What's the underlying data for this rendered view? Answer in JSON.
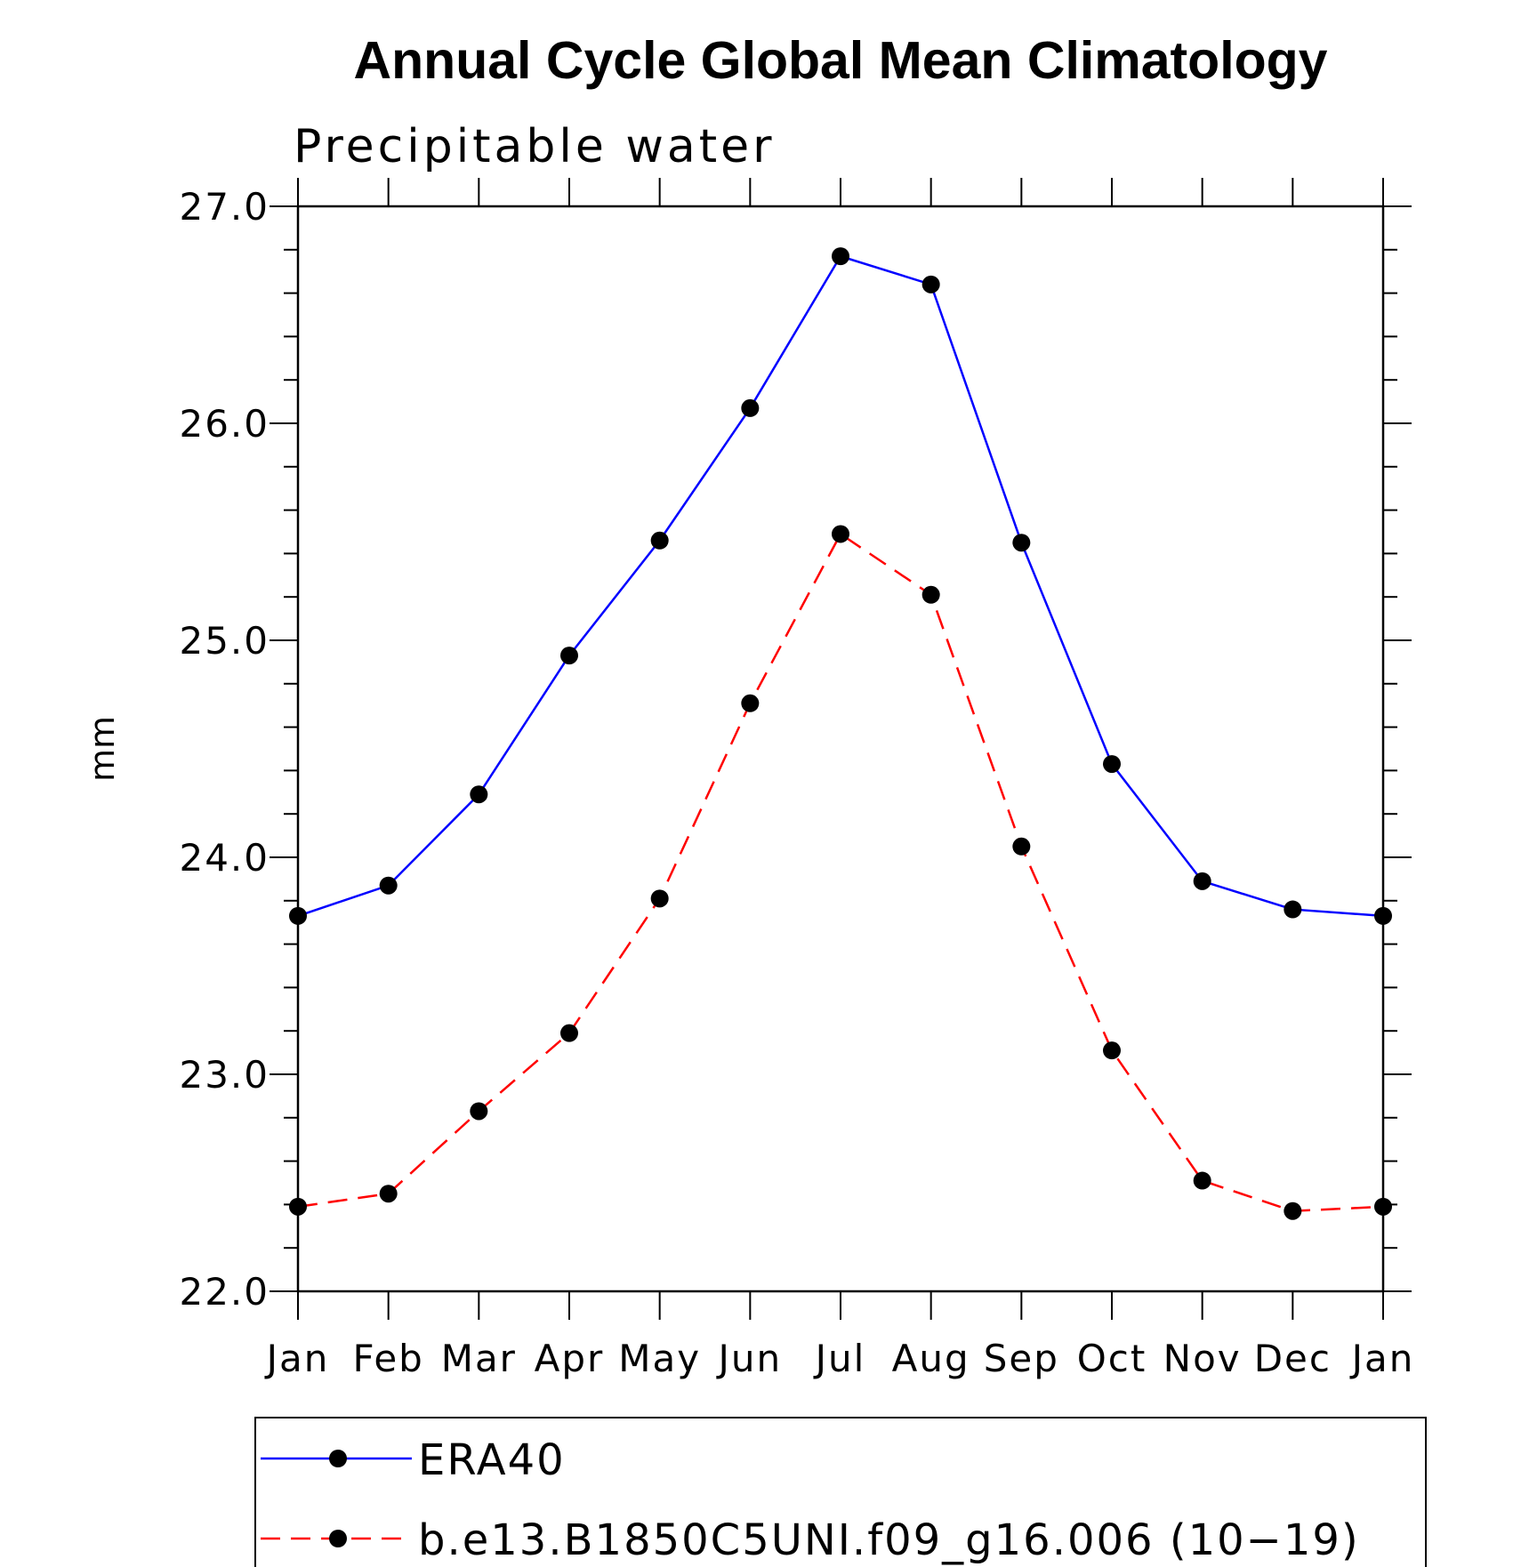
{
  "colors": {
    "era40": "#0000ff",
    "model": "#ff0000",
    "marker": "#000000",
    "axis": "#000000"
  },
  "chart_data": {
    "type": "line",
    "title": "Annual Cycle Global Mean Climatology",
    "subtitle": "Precipitable water",
    "xlabel": "",
    "ylabel": "mm",
    "categories": [
      "Jan",
      "Feb",
      "Mar",
      "Apr",
      "May",
      "Jun",
      "Jul",
      "Aug",
      "Sep",
      "Oct",
      "Nov",
      "Dec",
      "Jan"
    ],
    "ylim": [
      22.0,
      27.0
    ],
    "yticks": [
      "22.0",
      "23.0",
      "24.0",
      "25.0",
      "26.0",
      "27.0"
    ],
    "grid": false,
    "legend_position": "bottom",
    "series": [
      {
        "name": "ERA40",
        "style": "solid",
        "color": "#0000ff",
        "values": [
          23.73,
          23.87,
          24.29,
          24.93,
          25.46,
          26.07,
          26.77,
          26.64,
          25.45,
          24.43,
          23.89,
          23.76,
          23.73
        ]
      },
      {
        "name": "b.e13.B1850C5UNI.f09_g16.006 (10−19)",
        "style": "dashed",
        "color": "#ff0000",
        "values": [
          22.39,
          22.45,
          22.83,
          23.19,
          23.81,
          24.71,
          25.49,
          25.21,
          24.05,
          23.11,
          22.51,
          22.37,
          22.39
        ]
      }
    ]
  }
}
